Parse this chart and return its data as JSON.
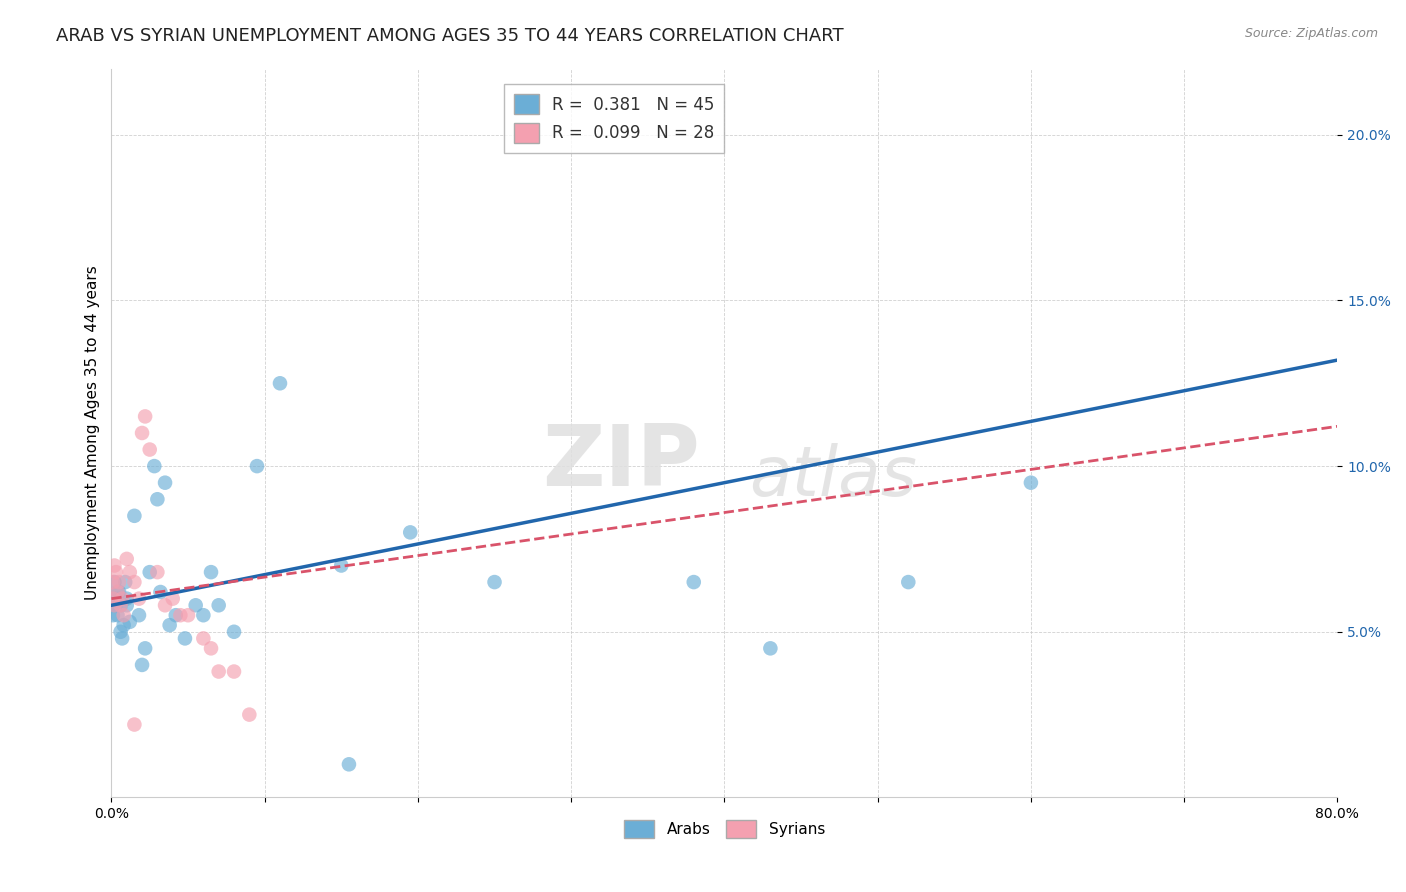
{
  "title": "ARAB VS SYRIAN UNEMPLOYMENT AMONG AGES 35 TO 44 YEARS CORRELATION CHART",
  "source": "Source: ZipAtlas.com",
  "ylabel": "Unemployment Among Ages 35 to 44 years",
  "xlim": [
    0.0,
    0.8
  ],
  "ylim": [
    0.0,
    0.22
  ],
  "xticks": [
    0.0,
    0.1,
    0.2,
    0.3,
    0.4,
    0.5,
    0.6,
    0.7,
    0.8
  ],
  "xticklabels": [
    "0.0%",
    "",
    "",
    "",
    "",
    "",
    "",
    "",
    "80.0%"
  ],
  "ytick_positions": [
    0.05,
    0.1,
    0.15,
    0.2
  ],
  "yticklabels": [
    "5.0%",
    "10.0%",
    "15.0%",
    "20.0%"
  ],
  "legend_arab_R": "0.381",
  "legend_arab_N": "45",
  "legend_syrian_R": "0.099",
  "legend_syrian_N": "28",
  "arab_color": "#6baed6",
  "syrian_color": "#f4a0b0",
  "arab_line_color": "#2166ac",
  "syrian_line_color": "#d9536a",
  "grid_color": "#cccccc",
  "watermark_zip": "ZIP",
  "watermark_atlas": "atlas",
  "arab_x": [
    0.001,
    0.001,
    0.002,
    0.002,
    0.003,
    0.003,
    0.004,
    0.004,
    0.005,
    0.005,
    0.006,
    0.006,
    0.007,
    0.008,
    0.009,
    0.01,
    0.01,
    0.012,
    0.015,
    0.018,
    0.02,
    0.022,
    0.025,
    0.028,
    0.03,
    0.032,
    0.035,
    0.038,
    0.042,
    0.048,
    0.055,
    0.06,
    0.065,
    0.07,
    0.08,
    0.095,
    0.11,
    0.15,
    0.195,
    0.25,
    0.38,
    0.43,
    0.52,
    0.6,
    0.155
  ],
  "arab_y": [
    0.06,
    0.055,
    0.065,
    0.058,
    0.058,
    0.06,
    0.055,
    0.062,
    0.06,
    0.062,
    0.058,
    0.05,
    0.048,
    0.052,
    0.065,
    0.06,
    0.058,
    0.053,
    0.085,
    0.055,
    0.04,
    0.045,
    0.068,
    0.1,
    0.09,
    0.062,
    0.095,
    0.052,
    0.055,
    0.048,
    0.058,
    0.055,
    0.068,
    0.058,
    0.05,
    0.1,
    0.125,
    0.07,
    0.08,
    0.065,
    0.065,
    0.045,
    0.065,
    0.095,
    0.01
  ],
  "syrian_x": [
    0.001,
    0.001,
    0.002,
    0.002,
    0.003,
    0.004,
    0.005,
    0.006,
    0.007,
    0.008,
    0.01,
    0.012,
    0.015,
    0.018,
    0.02,
    0.022,
    0.025,
    0.03,
    0.035,
    0.04,
    0.045,
    0.05,
    0.06,
    0.065,
    0.07,
    0.08,
    0.09,
    0.015
  ],
  "syrian_y": [
    0.065,
    0.06,
    0.07,
    0.058,
    0.068,
    0.062,
    0.065,
    0.058,
    0.06,
    0.055,
    0.072,
    0.068,
    0.065,
    0.06,
    0.11,
    0.115,
    0.105,
    0.068,
    0.058,
    0.06,
    0.055,
    0.055,
    0.048,
    0.045,
    0.038,
    0.038,
    0.025,
    0.022
  ],
  "background_color": "#ffffff",
  "title_fontsize": 13,
  "label_fontsize": 11,
  "tick_fontsize": 10,
  "marker_size": 110
}
